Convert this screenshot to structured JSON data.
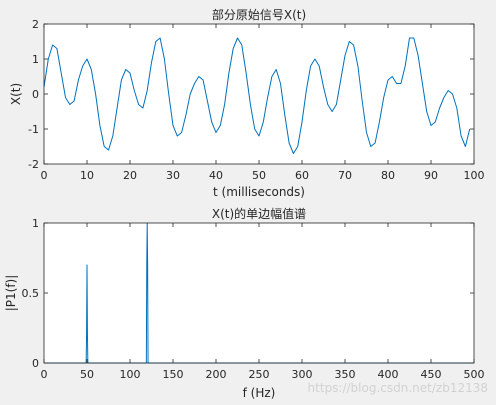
{
  "chart_data": [
    {
      "type": "line",
      "title": "部分原始信号X(t)",
      "xlabel": "t (milliseconds)",
      "ylabel": "X(t)",
      "xlim": [
        0,
        100
      ],
      "ylim": [
        -2,
        2
      ],
      "xticks": [
        0,
        10,
        20,
        30,
        40,
        50,
        60,
        70,
        80,
        90,
        100
      ],
      "yticks": [
        -2,
        -1,
        0,
        1,
        2
      ],
      "grid": false,
      "series": [
        {
          "color": "#0072bd",
          "x": [
            0,
            1,
            2,
            3,
            4,
            5,
            6,
            7,
            8,
            9,
            10,
            11,
            12,
            13,
            14,
            15,
            16,
            17,
            18,
            19,
            20,
            21,
            22,
            23,
            24,
            25,
            26,
            27,
            28,
            29,
            30,
            31,
            32,
            33,
            34,
            35,
            36,
            37,
            38,
            39,
            40,
            41,
            42,
            43,
            44,
            45,
            46,
            47,
            48,
            49,
            50,
            51,
            52,
            53,
            54,
            55,
            56,
            57,
            58,
            59,
            60,
            61,
            62,
            63,
            64,
            65,
            66,
            67,
            68,
            69,
            70,
            71,
            72,
            73,
            74,
            75,
            76,
            77,
            78,
            79,
            80,
            81,
            82,
            83,
            84,
            85,
            86,
            87,
            88,
            89,
            90,
            91,
            92,
            93,
            94,
            95,
            96,
            97,
            98,
            99
          ],
          "y": [
            0.2,
            1.0,
            1.4,
            1.3,
            0.6,
            -0.1,
            -0.3,
            -0.2,
            0.4,
            0.8,
            1.0,
            0.7,
            0.0,
            -0.9,
            -1.5,
            -1.6,
            -1.2,
            -0.4,
            0.4,
            0.7,
            0.6,
            0.1,
            -0.3,
            -0.4,
            0.1,
            0.9,
            1.5,
            1.6,
            1.0,
            0.0,
            -0.9,
            -1.2,
            -1.1,
            -0.6,
            0.0,
            0.3,
            0.5,
            0.4,
            -0.2,
            -0.8,
            -1.1,
            -0.9,
            -0.3,
            0.6,
            1.3,
            1.6,
            1.4,
            0.6,
            -0.3,
            -1.0,
            -1.2,
            -0.8,
            -0.1,
            0.5,
            0.7,
            0.3,
            -0.6,
            -1.4,
            -1.7,
            -1.5,
            -0.8,
            0.1,
            0.8,
            1.0,
            0.8,
            0.2,
            -0.3,
            -0.5,
            -0.3,
            0.4,
            1.1,
            1.5,
            1.4,
            0.8,
            -0.2,
            -1.1,
            -1.5,
            -1.4,
            -0.8,
            -0.1,
            0.4,
            0.5,
            0.3,
            0.3,
            0.8,
            1.6,
            1.6,
            1.1,
            0.3,
            -0.5,
            -0.9,
            -0.8,
            -0.4,
            -0.1,
            0.1,
            0.0,
            -0.4,
            -1.2,
            -1.5,
            -1.0
          ]
        }
      ]
    },
    {
      "type": "line",
      "title": "X(t)的单边幅值谱",
      "xlabel": "f (Hz)",
      "ylabel": "|P1(f)|",
      "xlim": [
        0,
        500
      ],
      "ylim": [
        0,
        1
      ],
      "xticks": [
        0,
        50,
        100,
        150,
        200,
        250,
        300,
        350,
        400,
        450,
        500
      ],
      "yticks": [
        0,
        0.5,
        1
      ],
      "ytick_labels": [
        "0",
        "0.5",
        "1"
      ],
      "grid": false,
      "series": [
        {
          "color": "#0072bd",
          "x": [
            0,
            49,
            49.5,
            50,
            50.5,
            51,
            119,
            119.5,
            120,
            120.5,
            121,
            500
          ],
          "y": [
            0,
            0,
            0.21,
            0.7,
            0.21,
            0,
            0,
            0.71,
            1.0,
            0.71,
            0,
            0
          ]
        }
      ]
    }
  ],
  "watermark": "https://blog.csdn.net/zb12138"
}
